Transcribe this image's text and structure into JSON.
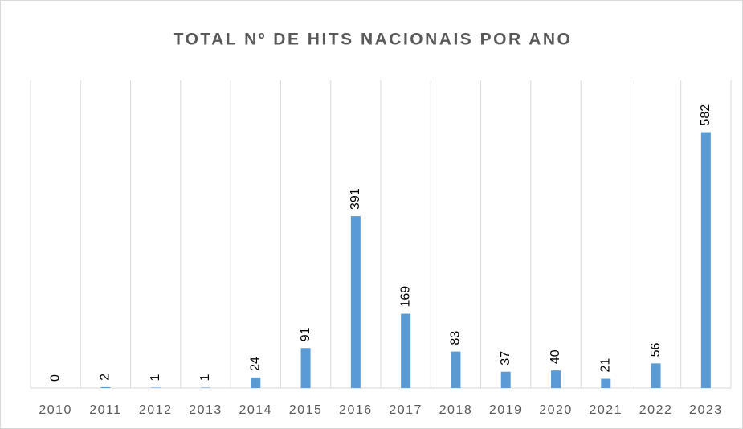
{
  "chart_data": {
    "type": "bar",
    "title": "TOTAL Nº DE HITS NACIONAIS POR ANO",
    "categories": [
      "2010",
      "2011",
      "2012",
      "2013",
      "2014",
      "2015",
      "2016",
      "2017",
      "2018",
      "2019",
      "2020",
      "2021",
      "2022",
      "2023"
    ],
    "values": [
      0,
      2,
      1,
      1,
      24,
      91,
      391,
      169,
      83,
      37,
      40,
      21,
      56,
      582
    ],
    "color": "#5b9bd5",
    "ylim": [
      0,
      700
    ],
    "data_labels": true,
    "vertical_grid": true
  }
}
